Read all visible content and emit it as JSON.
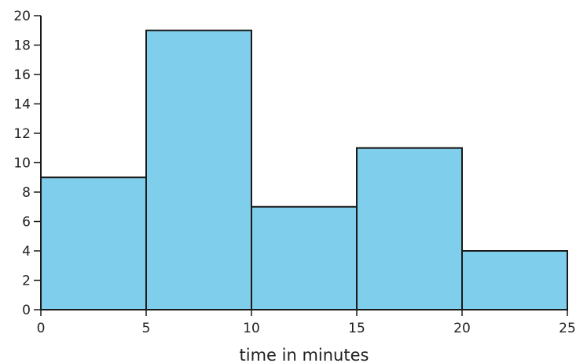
{
  "chart_data": {
    "type": "bar",
    "bins": [
      {
        "start": 0,
        "end": 5,
        "value": 9
      },
      {
        "start": 5,
        "end": 10,
        "value": 19
      },
      {
        "start": 10,
        "end": 15,
        "value": 7
      },
      {
        "start": 15,
        "end": 20,
        "value": 11
      },
      {
        "start": 20,
        "end": 25,
        "value": 4
      }
    ],
    "title": "",
    "xlabel": "time in minutes",
    "ylabel": "",
    "xlim": [
      0,
      25
    ],
    "ylim": [
      0,
      20
    ],
    "x_ticks": [
      0,
      5,
      10,
      15,
      20,
      25
    ],
    "y_ticks": [
      0,
      2,
      4,
      6,
      8,
      10,
      12,
      14,
      16,
      18,
      20
    ],
    "grid": false,
    "legend": "none",
    "colors": {
      "bar_fill": "#7fceeb",
      "bar_stroke": "#1a1a1a",
      "axis": "#1a1a1a",
      "text": "#222222"
    }
  }
}
